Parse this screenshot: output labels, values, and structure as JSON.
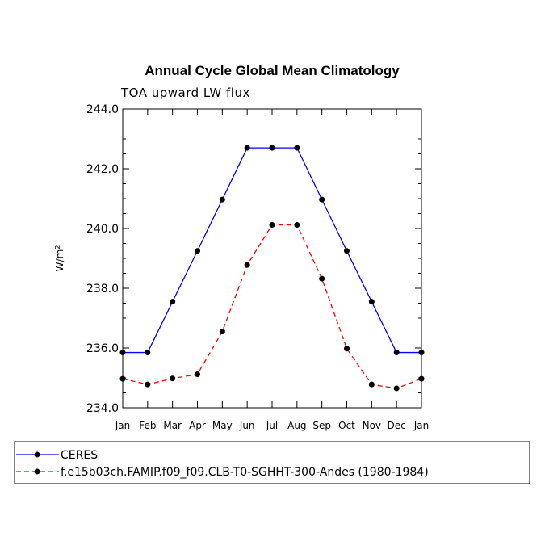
{
  "chart_data": {
    "type": "line",
    "title": "Annual Cycle Global Mean Climatology",
    "subtitle": "TOA upward LW flux",
    "ylabel_base": "W/m",
    "ylabel_sup": "2",
    "xlabel": "",
    "ylim": [
      234.0,
      244.0
    ],
    "yticks": [
      "234.0",
      "236.0",
      "238.0",
      "240.0",
      "242.0",
      "244.0"
    ],
    "categories": [
      "Jan",
      "Feb",
      "Mar",
      "Apr",
      "May",
      "Jun",
      "Jul",
      "Aug",
      "Sep",
      "Oct",
      "Nov",
      "Dec",
      "Jan"
    ],
    "series": [
      {
        "name": "CERES",
        "color": "#0000ff",
        "dashed": false,
        "values": [
          235.85,
          235.85,
          237.55,
          239.25,
          240.97,
          242.7,
          242.7,
          242.7,
          240.97,
          239.25,
          237.55,
          235.85,
          235.85
        ]
      },
      {
        "name": "f.e15b03ch.FAMIP.f09_f09.CLB-T0-SGHHT-300-Andes (1980-1984)",
        "color": "#ff0000",
        "dashed": true,
        "values": [
          234.97,
          234.78,
          234.98,
          235.12,
          236.55,
          238.78,
          240.12,
          240.12,
          238.32,
          235.98,
          234.78,
          234.65,
          234.97
        ]
      }
    ],
    "legend_position": "bottom"
  }
}
